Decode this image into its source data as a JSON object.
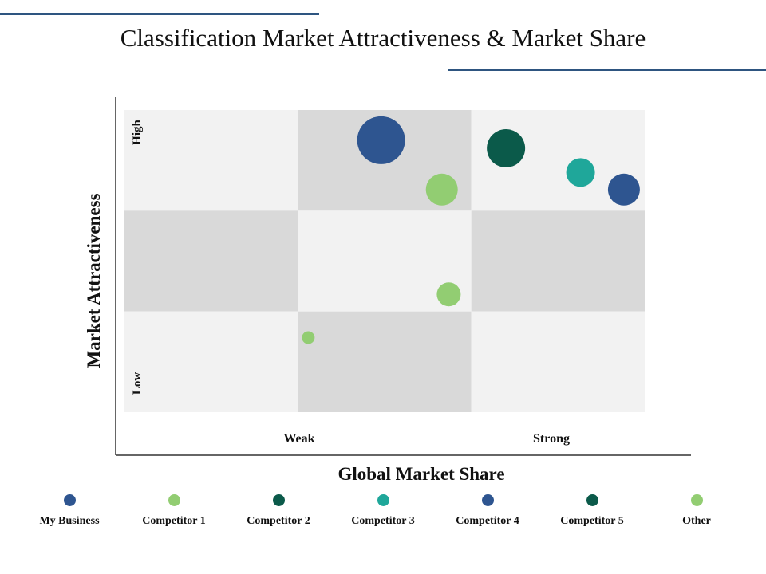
{
  "title": "Classification Market Attractiveness & Market Share",
  "chart_data": {
    "type": "scatter",
    "title": "Classification Market Attractiveness & Market Share",
    "xlabel": "Global Market Share",
    "ylabel": "Market Attractiveness",
    "x_ticks": [
      "Weak",
      "Strong"
    ],
    "y_ticks": [
      "Low",
      "High"
    ],
    "xlim": [
      0,
      3
    ],
    "ylim": [
      0,
      3
    ],
    "grid": "3x3",
    "legend_position": "bottom",
    "series": [
      {
        "name": "My Business",
        "color": "#2e5590",
        "points": [
          {
            "x": 1.48,
            "y": 2.7,
            "size": 30
          }
        ]
      },
      {
        "name": "Competitor 1",
        "color": "#92cd72",
        "points": [
          {
            "x": 1.83,
            "y": 2.21,
            "size": 20
          }
        ]
      },
      {
        "name": "Competitor 2",
        "color": "#0b5a4a",
        "points": [
          {
            "x": 2.2,
            "y": 2.62,
            "size": 24
          }
        ]
      },
      {
        "name": "Competitor 3",
        "color": "#1fa79a",
        "points": [
          {
            "x": 2.63,
            "y": 2.38,
            "size": 18
          }
        ]
      },
      {
        "name": "Competitor 4",
        "color": "#2e5590",
        "points": [
          {
            "x": 2.88,
            "y": 2.21,
            "size": 20
          }
        ]
      },
      {
        "name": "Competitor 5",
        "color": "#0b5a4a",
        "points": []
      },
      {
        "name": "Other",
        "color": "#92cd72",
        "points": [
          {
            "x": 1.87,
            "y": 1.17,
            "size": 15
          },
          {
            "x": 1.06,
            "y": 0.74,
            "size": 8
          }
        ]
      }
    ]
  },
  "legend": [
    {
      "name": "My Business",
      "color": "#2e5590"
    },
    {
      "name": "Competitor 1",
      "color": "#92cd72"
    },
    {
      "name": "Competitor 2",
      "color": "#0b5a4a"
    },
    {
      "name": "Competitor 3",
      "color": "#1fa79a"
    },
    {
      "name": "Competitor 4",
      "color": "#2e5590"
    },
    {
      "name": "Competitor 5",
      "color": "#0b5a4a"
    },
    {
      "name": "Other",
      "color": "#92cd72"
    }
  ]
}
